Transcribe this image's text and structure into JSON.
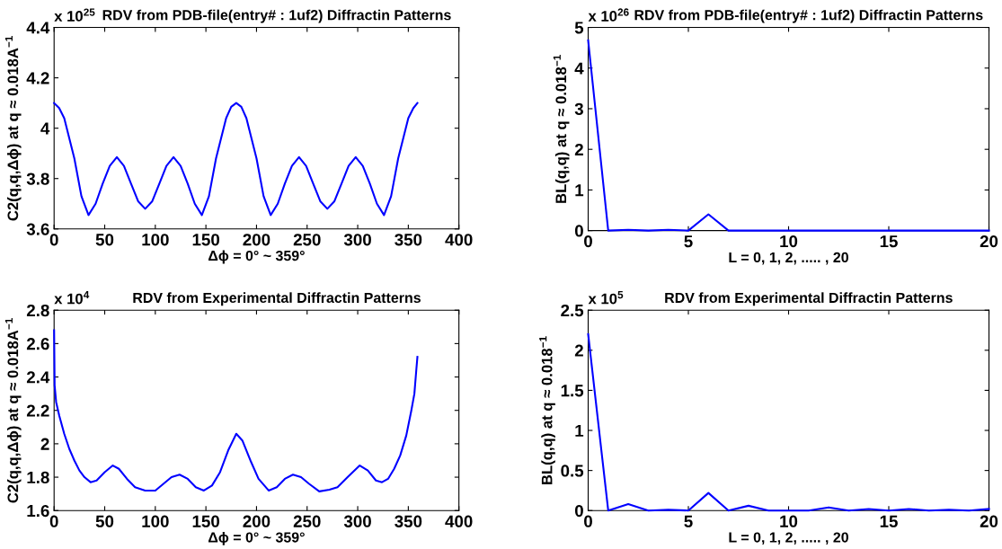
{
  "chart_data": [
    {
      "type": "line",
      "title": "RDV from PDB-file(entry# : 1uf2) Diffractin Patterns",
      "xlabel": "Δϕ = 0° ~ 359°",
      "ylabel": "C2(q,q,Δϕ) at q ≈ 0.018A$^{−1}$",
      "annotations": [
        "x 10$^{25}$"
      ],
      "xlim": [
        0,
        400
      ],
      "xticks": [
        0,
        50,
        100,
        150,
        200,
        250,
        300,
        350,
        400
      ],
      "ylim": [
        3.6,
        4.4
      ],
      "yticks": [
        3.6,
        3.8,
        4,
        4.2,
        4.4
      ],
      "grid": false,
      "series": [
        {
          "color": "#0000ff",
          "x": [
            0,
            5,
            10,
            20,
            27,
            34,
            41,
            48,
            55,
            62,
            69,
            76,
            83,
            90,
            97,
            104,
            111,
            118,
            125,
            132,
            139,
            146,
            153,
            160,
            170,
            175,
            180,
            185,
            190,
            200,
            207,
            214,
            221,
            228,
            235,
            242,
            249,
            256,
            263,
            270,
            277,
            284,
            291,
            298,
            305,
            312,
            319,
            326,
            333,
            340,
            350,
            355,
            359
          ],
          "values": [
            4.1,
            4.08,
            4.04,
            3.88,
            3.73,
            3.655,
            3.7,
            3.78,
            3.85,
            3.885,
            3.85,
            3.78,
            3.71,
            3.68,
            3.71,
            3.78,
            3.85,
            3.885,
            3.85,
            3.78,
            3.7,
            3.655,
            3.73,
            3.88,
            4.04,
            4.085,
            4.1,
            4.085,
            4.04,
            3.88,
            3.73,
            3.655,
            3.7,
            3.78,
            3.85,
            3.885,
            3.85,
            3.78,
            3.71,
            3.68,
            3.71,
            3.78,
            3.85,
            3.885,
            3.85,
            3.78,
            3.7,
            3.655,
            3.73,
            3.88,
            4.04,
            4.08,
            4.1
          ]
        }
      ]
    },
    {
      "type": "line",
      "title": "RDV from PDB-file(entry# : 1uf2) Diffractin Patterns",
      "xlabel": "L = 0, 1, 2, ..... , 20",
      "ylabel": "BL(q,q) at q ≈ 0.018$^{−1}$",
      "annotations": [
        "x 10$^{26}$"
      ],
      "xlim": [
        0,
        20
      ],
      "xticks": [
        0,
        5,
        10,
        15,
        20
      ],
      "ylim": [
        0,
        5
      ],
      "yticks": [
        0,
        1,
        2,
        3,
        4,
        5
      ],
      "grid": false,
      "series": [
        {
          "color": "#0000ff",
          "x": [
            0,
            1,
            2,
            3,
            4,
            5,
            6,
            7,
            8,
            9,
            10,
            11,
            12,
            13,
            14,
            15,
            16,
            17,
            18,
            19,
            20
          ],
          "values": [
            4.68,
            0,
            0.02,
            0,
            0.02,
            0,
            0.4,
            0,
            0,
            0,
            0,
            0,
            0,
            0,
            0,
            0,
            0,
            0,
            0,
            0,
            0
          ]
        }
      ]
    },
    {
      "type": "line",
      "title": "RDV from Experimental Diffractin Patterns",
      "xlabel": "Δϕ = 0° ~ 359°",
      "ylabel": "C2(q,q,Δϕ) at q ≈ 0.018A$^{−1}$",
      "annotations": [
        "x 10$^{4}$"
      ],
      "xlim": [
        0,
        400
      ],
      "xticks": [
        0,
        50,
        100,
        150,
        200,
        250,
        300,
        350,
        400
      ],
      "ylim": [
        1.6,
        2.8
      ],
      "yticks": [
        1.6,
        1.8,
        2,
        2.2,
        2.4,
        2.6,
        2.8
      ],
      "grid": false,
      "series": [
        {
          "color": "#0000ff",
          "x": [
            0,
            0.5,
            2,
            5,
            10,
            15,
            20,
            25,
            30,
            36,
            42,
            50,
            58,
            64,
            72,
            80,
            90,
            100,
            108,
            116,
            124,
            132,
            140,
            148,
            156,
            164,
            172,
            180,
            186,
            194,
            202,
            212,
            220,
            228,
            236,
            244,
            252,
            262,
            272,
            280,
            290,
            302,
            310,
            318,
            324,
            330,
            336,
            342,
            348,
            353,
            356,
            358,
            359
          ],
          "values": [
            2.68,
            2.35,
            2.25,
            2.17,
            2.06,
            1.97,
            1.9,
            1.84,
            1.8,
            1.77,
            1.78,
            1.83,
            1.87,
            1.85,
            1.79,
            1.74,
            1.72,
            1.72,
            1.76,
            1.8,
            1.815,
            1.79,
            1.74,
            1.72,
            1.75,
            1.83,
            1.96,
            2.06,
            2.02,
            1.9,
            1.79,
            1.72,
            1.74,
            1.79,
            1.815,
            1.8,
            1.76,
            1.715,
            1.725,
            1.74,
            1.8,
            1.87,
            1.84,
            1.78,
            1.77,
            1.79,
            1.85,
            1.93,
            2.05,
            2.2,
            2.3,
            2.45,
            2.52
          ]
        }
      ]
    },
    {
      "type": "line",
      "title": "RDV from Experimental Diffractin Patterns",
      "xlabel": "L = 0, 1, 2, ..... , 20",
      "ylabel": "BL(q,q) at q ≈ 0.018$^{−1}$",
      "annotations": [
        "x 10$^{5}$"
      ],
      "xlim": [
        0,
        20
      ],
      "xticks": [
        0,
        5,
        10,
        15,
        20
      ],
      "ylim": [
        0,
        2.5
      ],
      "yticks": [
        0,
        0.5,
        1,
        1.5,
        2,
        2.5
      ],
      "grid": false,
      "series": [
        {
          "color": "#0000ff",
          "x": [
            0,
            1,
            2,
            3,
            4,
            5,
            6,
            7,
            8,
            9,
            10,
            11,
            12,
            13,
            14,
            15,
            16,
            17,
            18,
            19,
            20
          ],
          "values": [
            2.2,
            0,
            0.08,
            0,
            0.01,
            0,
            0.22,
            0,
            0.06,
            0,
            0,
            0,
            0.04,
            0,
            0.02,
            0,
            0.02,
            0,
            0.01,
            0,
            0.02
          ]
        }
      ]
    }
  ]
}
